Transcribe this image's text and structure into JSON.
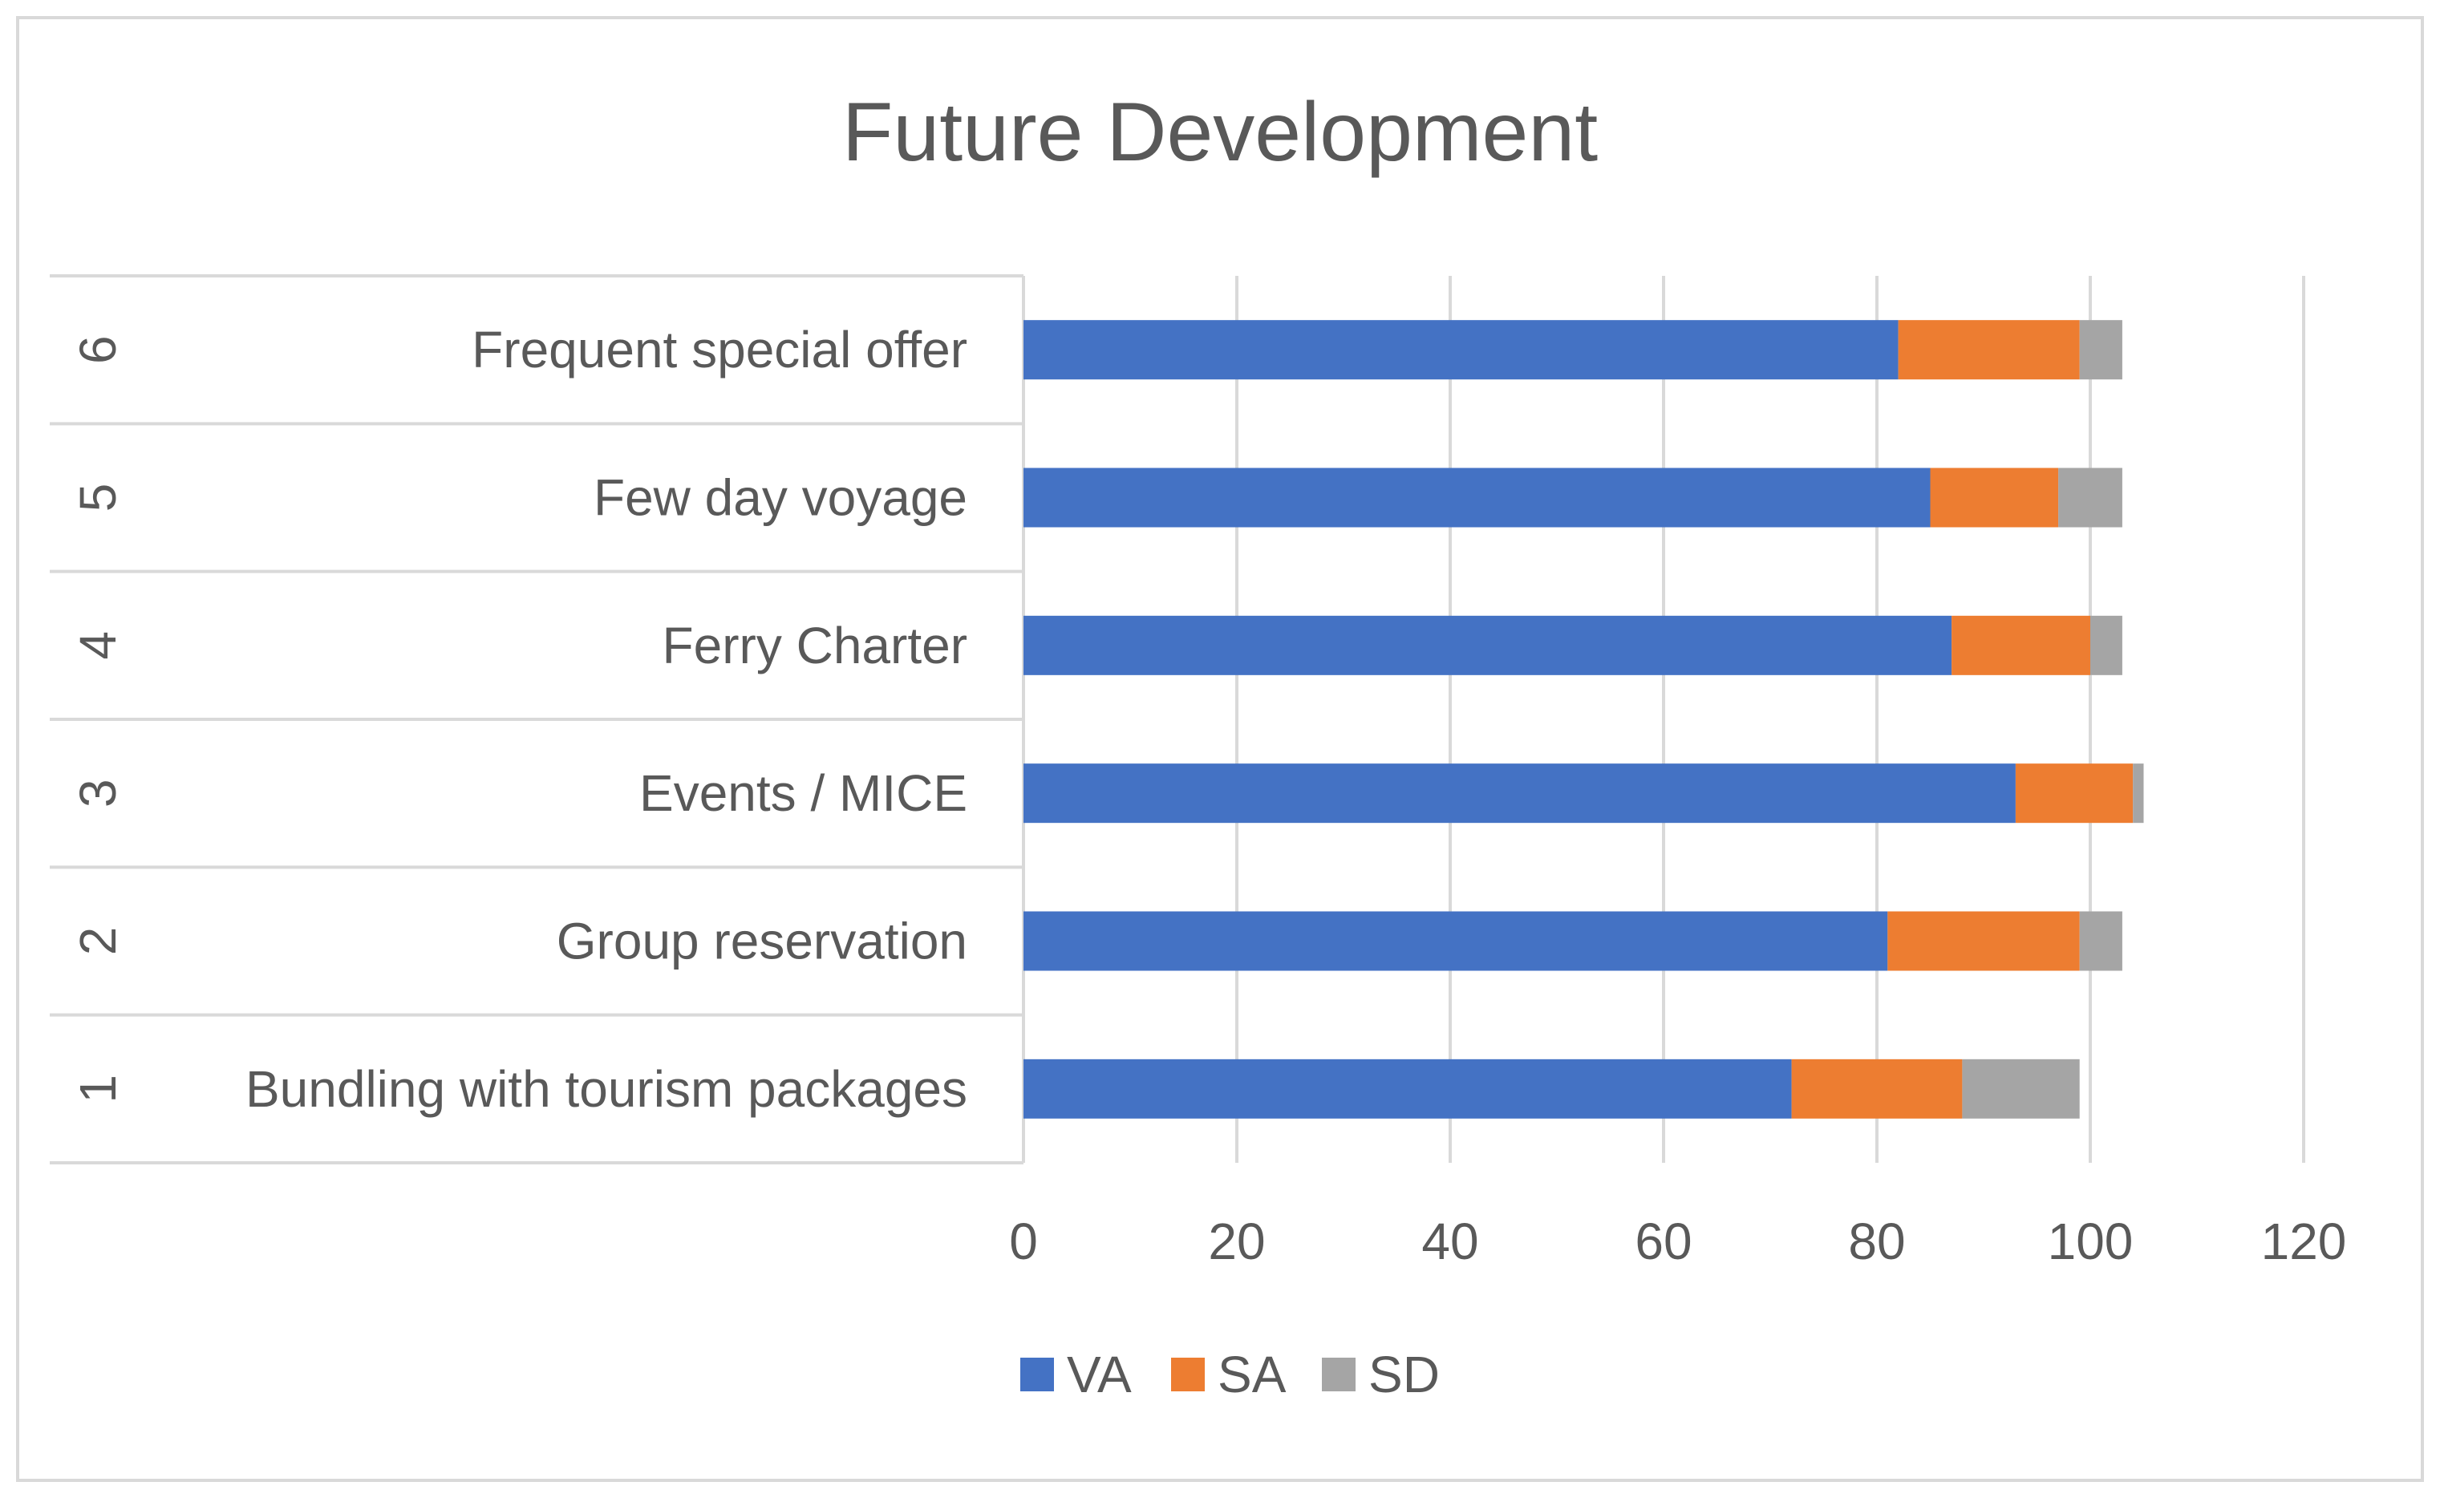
{
  "chart_data": {
    "type": "bar",
    "orientation": "horizontal",
    "stacked": true,
    "title": "Future Development",
    "xlabel": "",
    "ylabel": "",
    "xlim": [
      0,
      120
    ],
    "x_ticks": [
      0,
      20,
      40,
      60,
      80,
      100,
      120
    ],
    "grid": true,
    "legend_position": "bottom",
    "categories": [
      {
        "index": "1",
        "label": "Bundling with tourism packages"
      },
      {
        "index": "2",
        "label": "Group reservation"
      },
      {
        "index": "3",
        "label": "Events / MICE"
      },
      {
        "index": "4",
        "label": "Ferry Charter"
      },
      {
        "index": "5",
        "label": "Few day voyage"
      },
      {
        "index": "6",
        "label": "Frequent special offer"
      }
    ],
    "series": [
      {
        "name": "VA",
        "color": "#4472C4",
        "values": [
          72,
          81,
          93,
          87,
          85,
          82
        ]
      },
      {
        "name": "SA",
        "color": "#ED7D31",
        "values": [
          16,
          18,
          11,
          13,
          12,
          17
        ]
      },
      {
        "name": "SD",
        "color": "#A5A5A5",
        "values": [
          11,
          4,
          1,
          3,
          6,
          4
        ]
      }
    ]
  }
}
